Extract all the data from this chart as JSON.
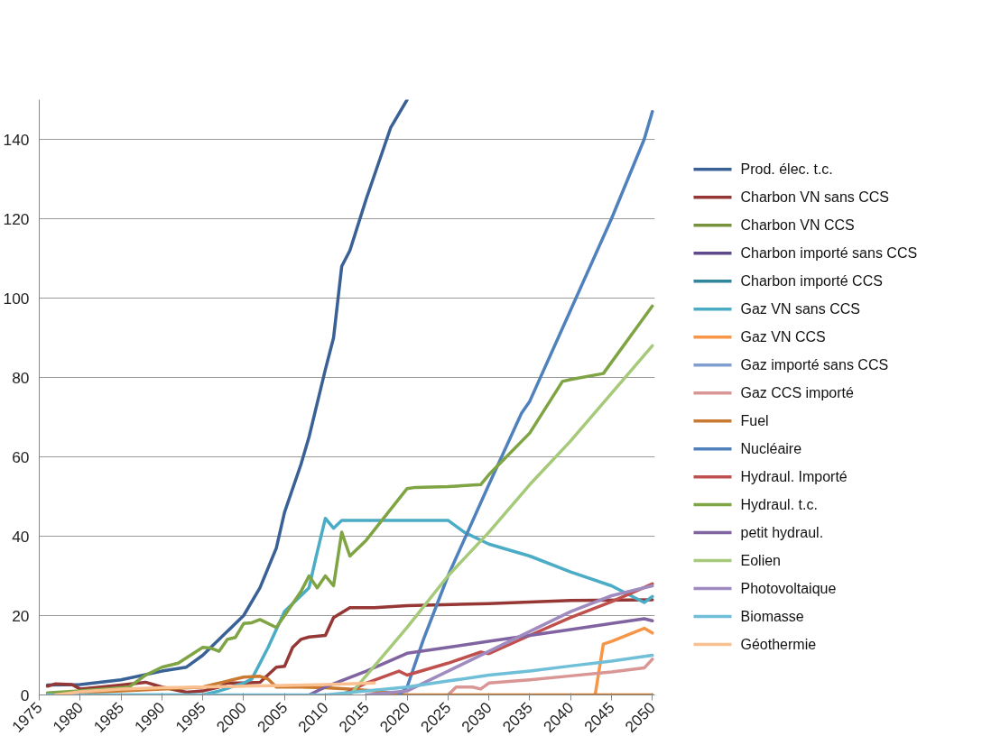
{
  "chart_data": {
    "type": "line",
    "xlim": [
      1975,
      2050.3
    ],
    "ylim": [
      0,
      150
    ],
    "xticks": [
      1975,
      1980,
      1985,
      1990,
      1995,
      2000,
      2005,
      2010,
      2015,
      2020,
      2025,
      2030,
      2035,
      2040,
      2045,
      2050
    ],
    "yticks": [
      0,
      20,
      40,
      60,
      80,
      100,
      120,
      140
    ],
    "grid": "y",
    "legend": "right",
    "marker": "none",
    "line_style": "solid",
    "series": [
      {
        "name": "Prod. élec. t.c.",
        "color": "#3a6195",
        "x": [
          1976,
          1980,
          1985,
          1990,
          1993,
          1995,
          1998,
          2000,
          2002,
          2004,
          2005,
          2007,
          2008,
          2010,
          2011,
          2012,
          2013,
          2015,
          2018,
          2020
        ],
        "values": [
          2.5,
          2.6,
          3.8,
          6,
          7,
          10,
          16,
          20,
          27,
          37,
          46,
          58,
          65,
          82,
          90,
          108,
          112,
          125,
          143,
          150
        ]
      },
      {
        "name": "Charbon VN sans CCS",
        "color": "#953735",
        "x": [
          1976,
          1977,
          1979,
          1980,
          1985,
          1988,
          1990,
          1993,
          1995,
          1997,
          1998,
          2000,
          2002,
          2004,
          2005,
          2006,
          2007,
          2008,
          2010,
          2011,
          2013,
          2016,
          2020,
          2030,
          2040,
          2050
        ],
        "values": [
          2.2,
          2.8,
          2.6,
          1.5,
          2.5,
          3.2,
          2,
          0.7,
          1,
          2,
          3,
          3,
          3.2,
          7,
          7.2,
          12,
          14,
          14.6,
          15,
          19.5,
          22,
          22,
          22.5,
          23,
          23.8,
          24
        ]
      },
      {
        "name": "Charbon VN CCS",
        "color": "#77933c"
      },
      {
        "name": "Charbon importé sans CCS",
        "color": "#5f4b8b"
      },
      {
        "name": "Charbon importé CCS",
        "color": "#31859c"
      },
      {
        "name": "Gaz VN sans CCS",
        "color": "#4bacc6",
        "x": [
          1976,
          1995,
          1997,
          2000,
          2001,
          2003,
          2005,
          2007,
          2008,
          2009,
          2010,
          2011,
          2012,
          2020,
          2025,
          2027,
          2030,
          2035,
          2040,
          2045,
          2049,
          2050
        ],
        "values": [
          0,
          0,
          1,
          3,
          4,
          12,
          21,
          25,
          27,
          36,
          44.5,
          42,
          44,
          44,
          44,
          41,
          38,
          35,
          31,
          27.5,
          23.3,
          24.8
        ]
      },
      {
        "name": "Gaz VN CCS",
        "color": "#f79646",
        "x": [
          2043,
          2044,
          2045,
          2049,
          2050
        ],
        "values": [
          0,
          12.8,
          13.5,
          16.8,
          15.6
        ]
      },
      {
        "name": "Gaz importé sans CCS",
        "color": "#7f9fcf"
      },
      {
        "name": "Gaz CCS importé",
        "color": "#d99694",
        "x": [
          2025,
          2026,
          2028,
          2029,
          2030,
          2035,
          2040,
          2045,
          2049,
          2050
        ],
        "values": [
          0,
          2,
          2,
          1.5,
          3,
          3.8,
          4.8,
          5.8,
          6.8,
          9
        ]
      },
      {
        "name": "Fuel",
        "color": "#c97a30",
        "x": [
          1977,
          1985,
          1990,
          1995,
          1998,
          2000,
          2002,
          2003,
          2004,
          2007,
          2010,
          2013,
          2016,
          2020,
          2050
        ],
        "values": [
          0.3,
          1,
          1.5,
          2,
          3.5,
          4.5,
          4.7,
          4,
          2,
          2,
          1.8,
          1.5,
          1,
          0,
          0
        ]
      },
      {
        "name": "Nucléaire",
        "color": "#4f81bd",
        "x": [
          2019,
          2020,
          2022,
          2025,
          2030,
          2034,
          2035,
          2040,
          2045,
          2049,
          2050
        ],
        "values": [
          0,
          2,
          14,
          30,
          53,
          71,
          74,
          97,
          120,
          140,
          147
        ]
      },
      {
        "name": "Hydraul. Importé",
        "color": "#c0504d",
        "x": [
          2012,
          2015,
          2019,
          2020,
          2025,
          2029,
          2030,
          2035,
          2040,
          2045,
          2050
        ],
        "values": [
          0,
          3,
          6,
          5,
          8,
          10.8,
          10.4,
          15,
          19.5,
          23.5,
          28
        ]
      },
      {
        "name": "Hydraul. t.c.",
        "color": "#7fa443",
        "x": [
          1976,
          1980,
          1986,
          1988,
          1990,
          1992,
          1995,
          1996,
          1997,
          1998,
          1999,
          2000,
          2001,
          2002,
          2004,
          2005,
          2007,
          2008,
          2009,
          2010,
          2011,
          2012,
          2013,
          2015,
          2020,
          2021,
          2025,
          2029,
          2030,
          2035,
          2039,
          2040,
          2044,
          2050
        ],
        "values": [
          0.5,
          1,
          2,
          5,
          7,
          8,
          12,
          11.8,
          11,
          14,
          14.5,
          18,
          18.2,
          19,
          17,
          20,
          26,
          30,
          27,
          30,
          27.5,
          41,
          35,
          39,
          52,
          52.3,
          52.5,
          53,
          55.5,
          66,
          79,
          79.5,
          81,
          98
        ]
      },
      {
        "name": "petit hydraul.",
        "color": "#8064a2",
        "x": [
          2008,
          2010,
          2015,
          2020,
          2025,
          2030,
          2035,
          2040,
          2045,
          2049,
          2050
        ],
        "values": [
          0,
          2,
          6,
          10.5,
          12,
          13.5,
          15,
          16.5,
          18,
          19.2,
          18.7
        ]
      },
      {
        "name": "Eolien",
        "color": "#a6c97a",
        "x": [
          2013,
          2020,
          2025,
          2030,
          2035,
          2040,
          2045,
          2050
        ],
        "values": [
          0,
          17,
          30,
          41,
          53,
          64,
          76,
          88
        ]
      },
      {
        "name": "Photovoltaique",
        "color": "#a08bc0",
        "x": [
          2015,
          2020,
          2025,
          2030,
          2035,
          2040,
          2045,
          2050
        ],
        "values": [
          0,
          1,
          6,
          11,
          16,
          21,
          25,
          27.5
        ]
      },
      {
        "name": "Biomasse",
        "color": "#6fbfd8",
        "x": [
          1976,
          2010,
          2015,
          2020,
          2025,
          2030,
          2035,
          2040,
          2045,
          2050
        ],
        "values": [
          0,
          0,
          1,
          2,
          3.5,
          5,
          6,
          7.3,
          8.5,
          10
        ]
      },
      {
        "name": "Géothermie",
        "color": "#fac090",
        "x": [
          1977,
          1980,
          1985,
          1990,
          1995,
          2000,
          2005,
          2010,
          2016
        ],
        "values": [
          0,
          0.8,
          1.5,
          1.8,
          2,
          2.2,
          2.4,
          2.6,
          3.0
        ]
      }
    ]
  }
}
